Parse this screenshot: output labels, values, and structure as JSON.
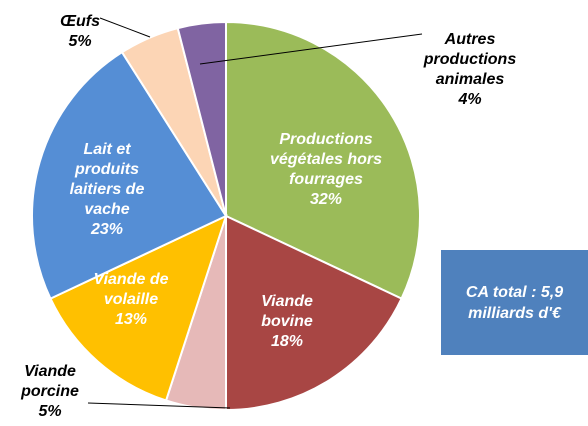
{
  "chart_data": {
    "type": "pie",
    "categories": [
      "Productions végétales hors fourrages",
      "Viande bovine",
      "Viande porcine",
      "Viande de volaille",
      "Lait et produits laitiers de vache",
      "Œufs",
      "Autres productions animales"
    ],
    "values": [
      32,
      18,
      5,
      13,
      23,
      5,
      4
    ],
    "value_labels": [
      "32%",
      "18%",
      "5%",
      "13%",
      "23%",
      "5%",
      "4%"
    ],
    "colors": [
      "#9bbb59",
      "#a84644",
      "#e6b9b8",
      "#ffc000",
      "#558ed5",
      "#fcd5b5",
      "#8064a2"
    ],
    "annotation": "CA total : 5,9 milliards d'€"
  }
}
